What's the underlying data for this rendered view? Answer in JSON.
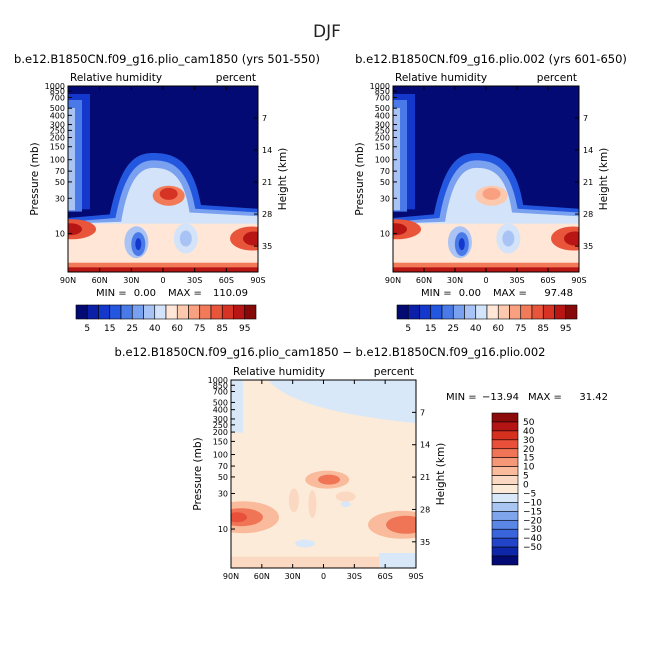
{
  "page_title": "DJF",
  "panels": [
    {
      "title": "b.e12.B1850CN.f09_g16.plio_cam1850 (yrs 501-550)",
      "var_label": "Relative humidity",
      "units_label": "percent",
      "ylabel": "Pressure (mb)",
      "y2label": "Height (km)",
      "min_label": "MIN =",
      "min_value": "0.00",
      "max_label": "MAX =",
      "max_value": "110.09"
    },
    {
      "title": "b.e12.B1850CN.f09_g16.plio.002 (yrs 601-650)",
      "var_label": "Relative humidity",
      "units_label": "percent",
      "ylabel": "Pressure (mb)",
      "y2label": "Height (km)",
      "min_label": "MIN =",
      "min_value": "0.00",
      "max_label": "MAX =",
      "max_value": "97.48"
    },
    {
      "title": "b.e12.B1850CN.f09_g16.plio_cam1850 − b.e12.B1850CN.f09_g16.plio.002",
      "var_label": "Relative humidity",
      "units_label": "percent",
      "ylabel": "Pressure (mb)",
      "y2label": "Height (km)",
      "min_label": "MIN =",
      "min_value": "−13.94",
      "max_label": "MAX =",
      "max_value": "31.42"
    }
  ],
  "chart_data": [
    {
      "type": "heatmap",
      "subtype": "filled-contour",
      "x_ticks": [
        "90N",
        "60N",
        "30N",
        "0",
        "30S",
        "60S",
        "90S"
      ],
      "y_ticks": [
        "10",
        "30",
        "50",
        "70",
        "100",
        "150",
        "200",
        "250",
        "300",
        "400",
        "500",
        "700",
        "850",
        "1000"
      ],
      "y2_ticks": [
        "35",
        "28",
        "21",
        "14",
        "7"
      ],
      "y_scale": "log",
      "y_range": [
        1000,
        3
      ],
      "x_range": [
        "90N",
        "90S"
      ],
      "colorbar_levels": [
        "5",
        "15",
        "25",
        "40",
        "60",
        "75",
        "85",
        "95"
      ],
      "colorbar_colors": [
        "#030a73",
        "#0b1fa8",
        "#1538cc",
        "#2457e0",
        "#4a7ae8",
        "#7aa0f0",
        "#a9c3f5",
        "#d3e3f9",
        "#ffe6d6",
        "#fcc8ae",
        "#f9a080",
        "#f27a58",
        "#e8553b",
        "#d63324",
        "#b81614",
        "#870a0a"
      ]
    },
    {
      "type": "heatmap",
      "subtype": "filled-contour",
      "x_ticks": [
        "90N",
        "60N",
        "30N",
        "0",
        "30S",
        "60S",
        "90S"
      ],
      "y_ticks": [
        "10",
        "30",
        "50",
        "70",
        "100",
        "150",
        "200",
        "250",
        "300",
        "400",
        "500",
        "700",
        "850",
        "1000"
      ],
      "y2_ticks": [
        "35",
        "28",
        "21",
        "14",
        "7"
      ],
      "y_scale": "log",
      "y_range": [
        1000,
        3
      ],
      "x_range": [
        "90N",
        "90S"
      ],
      "colorbar_levels": [
        "5",
        "15",
        "25",
        "40",
        "60",
        "75",
        "85",
        "95"
      ],
      "colorbar_colors": [
        "#030a73",
        "#0b1fa8",
        "#1538cc",
        "#2457e0",
        "#4a7ae8",
        "#7aa0f0",
        "#a9c3f5",
        "#d3e3f9",
        "#ffe6d6",
        "#fcc8ae",
        "#f9a080",
        "#f27a58",
        "#e8553b",
        "#d63324",
        "#b81614",
        "#870a0a"
      ]
    },
    {
      "type": "heatmap",
      "subtype": "filled-contour",
      "x_ticks": [
        "90N",
        "60N",
        "30N",
        "0",
        "30S",
        "60S",
        "90S"
      ],
      "y_ticks": [
        "10",
        "30",
        "50",
        "70",
        "100",
        "150",
        "200",
        "250",
        "300",
        "400",
        "500",
        "700",
        "850",
        "1000"
      ],
      "y2_ticks": [
        "35",
        "28",
        "21",
        "14",
        "7"
      ],
      "y_scale": "log",
      "y_range": [
        1000,
        3
      ],
      "x_range": [
        "90N",
        "90S"
      ],
      "colorbar_levels": [
        "50",
        "40",
        "30",
        "20",
        "15",
        "10",
        "5",
        "0",
        "−5",
        "−10",
        "−15",
        "−20",
        "−30",
        "−40",
        "−50"
      ],
      "colorbar_colors": [
        "#8b0a0a",
        "#b51414",
        "#d6301f",
        "#e8503a",
        "#f07556",
        "#f59878",
        "#f9bb9c",
        "#fbd8c2",
        "#fdebd9",
        "#d9e8f9",
        "#a9c6f2",
        "#7fa5ec",
        "#5a87e6",
        "#3a64db",
        "#2244c9",
        "#0e26a8",
        "#030a73"
      ]
    }
  ]
}
